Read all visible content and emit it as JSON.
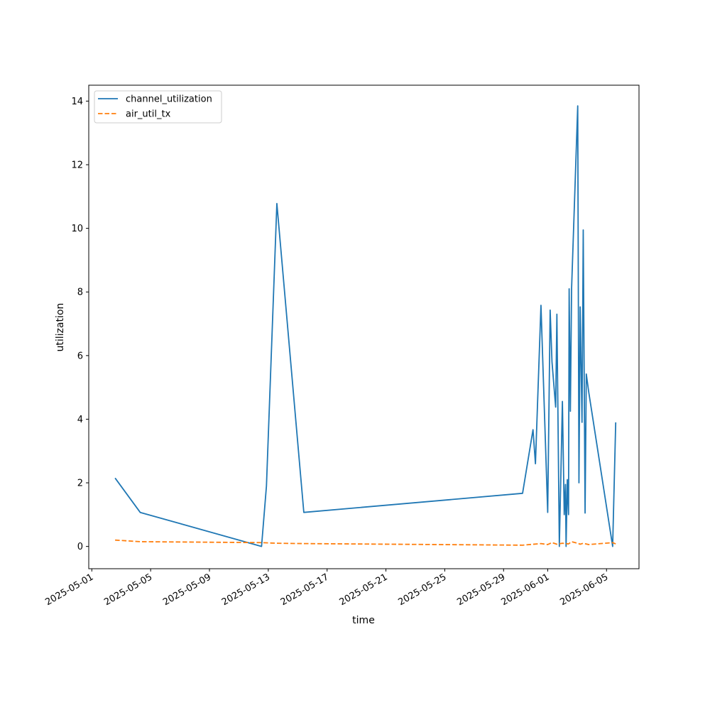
{
  "chart_data": {
    "type": "line",
    "xlabel": "time",
    "ylabel": "utilization",
    "x_type": "date",
    "xlim": [
      "2025-04-30T19:00",
      "2025-06-07T05:00"
    ],
    "ylim": [
      -0.7,
      14.5
    ],
    "x_ticks": [
      "2025-05-01",
      "2025-05-05",
      "2025-05-09",
      "2025-05-13",
      "2025-05-17",
      "2025-05-21",
      "2025-05-25",
      "2025-05-29",
      "2025-06-01",
      "2025-06-05"
    ],
    "y_ticks": [
      0,
      2,
      4,
      6,
      8,
      10,
      12,
      14
    ],
    "legend_position": "top-left",
    "series": [
      {
        "name": "channel_utilization",
        "color": "#1f77b4",
        "dash": "solid",
        "points": [
          [
            "2025-05-02T14:00",
            2.15
          ],
          [
            "2025-05-04T07:00",
            1.07
          ],
          [
            "2025-05-12T13:00",
            0.0
          ],
          [
            "2025-05-12T21:00",
            1.9
          ],
          [
            "2025-05-13T14:00",
            10.78
          ],
          [
            "2025-05-15T10:00",
            1.07
          ],
          [
            "2025-05-30T07:00",
            1.67
          ],
          [
            "2025-05-31T00:00",
            3.67
          ],
          [
            "2025-05-31T04:00",
            2.6
          ],
          [
            "2025-05-31T13:00",
            7.58
          ],
          [
            "2025-06-01T00:00",
            1.07
          ],
          [
            "2025-06-01T04:00",
            7.43
          ],
          [
            "2025-06-01T07:00",
            5.8
          ],
          [
            "2025-06-01T13:00",
            4.38
          ],
          [
            "2025-06-01T15:00",
            7.3
          ],
          [
            "2025-06-01T19:00",
            0.0
          ],
          [
            "2025-06-02T00:00",
            4.56
          ],
          [
            "2025-06-02T03:00",
            1.0
          ],
          [
            "2025-06-02T05:00",
            1.95
          ],
          [
            "2025-06-02T06:00",
            0.0
          ],
          [
            "2025-06-02T08:00",
            2.1
          ],
          [
            "2025-06-02T10:00",
            1.0
          ],
          [
            "2025-06-02T11:00",
            8.1
          ],
          [
            "2025-06-02T13:00",
            4.25
          ],
          [
            "2025-06-02T15:00",
            8.12
          ],
          [
            "2025-06-03T01:00",
            13.85
          ],
          [
            "2025-06-03T03:00",
            2.0
          ],
          [
            "2025-06-03T05:00",
            7.53
          ],
          [
            "2025-06-03T08:00",
            3.9
          ],
          [
            "2025-06-03T10:00",
            9.95
          ],
          [
            "2025-06-03T13:00",
            1.05
          ],
          [
            "2025-06-03T15:00",
            5.42
          ],
          [
            "2025-06-03T19:00",
            4.85
          ],
          [
            "2025-06-05T10:00",
            0.0
          ],
          [
            "2025-06-05T15:00",
            3.9
          ]
        ]
      },
      {
        "name": "air_util_tx",
        "color": "#ff7f0e",
        "dash": "dashed",
        "points": [
          [
            "2025-05-02T14:00",
            0.2
          ],
          [
            "2025-05-04T07:00",
            0.15
          ],
          [
            "2025-05-12T13:00",
            0.12
          ],
          [
            "2025-05-13T14:00",
            0.1
          ],
          [
            "2025-05-15T10:00",
            0.09
          ],
          [
            "2025-05-30T07:00",
            0.04
          ],
          [
            "2025-05-31T13:00",
            0.09
          ],
          [
            "2025-06-01T00:00",
            0.06
          ],
          [
            "2025-06-01T07:00",
            0.12
          ],
          [
            "2025-06-01T15:00",
            0.07
          ],
          [
            "2025-06-02T00:00",
            0.1
          ],
          [
            "2025-06-02T10:00",
            0.08
          ],
          [
            "2025-06-02T15:00",
            0.15
          ],
          [
            "2025-06-03T01:00",
            0.1
          ],
          [
            "2025-06-03T05:00",
            0.07
          ],
          [
            "2025-06-03T10:00",
            0.1
          ],
          [
            "2025-06-03T19:00",
            0.06
          ],
          [
            "2025-06-05T10:00",
            0.12
          ],
          [
            "2025-06-05T15:00",
            0.08
          ]
        ]
      }
    ]
  }
}
